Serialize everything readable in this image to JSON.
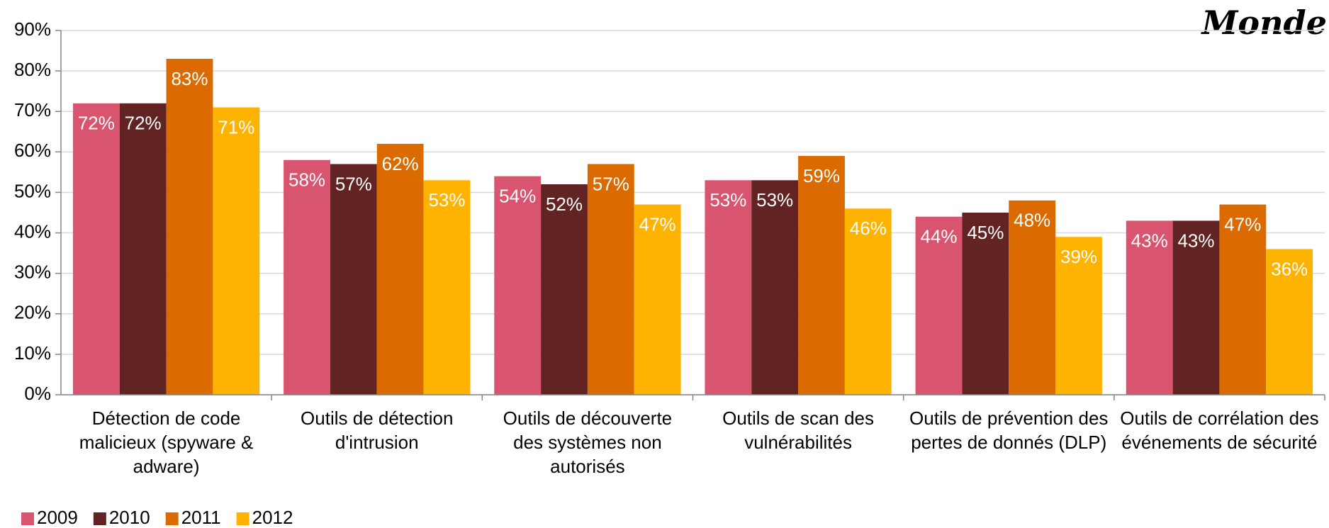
{
  "chart_data": {
    "type": "bar",
    "title": "Monde",
    "categories": [
      "Détection de code malicieux (spyware & adware)",
      "Outils de détection d'intrusion",
      "Outils de découverte des systèmes non autorisés",
      "Outils de scan des vulnérabilités",
      "Outils de prévention des pertes de donnés (DLP)",
      "Outils de corrélation des événements de sécurité"
    ],
    "series": [
      {
        "name": "2009",
        "color": "#d9546e",
        "values": [
          72,
          58,
          54,
          53,
          44,
          43
        ],
        "value_labels": [
          "72%",
          "58%",
          "54%",
          "53%",
          "44%",
          "43%"
        ]
      },
      {
        "name": "2010",
        "color": "#622423",
        "values": [
          72,
          57,
          52,
          53,
          45,
          43
        ],
        "value_labels": [
          "72%",
          "57%",
          "52%",
          "53%",
          "45%",
          "43%"
        ]
      },
      {
        "name": "2011",
        "color": "#db6a00",
        "values": [
          83,
          62,
          57,
          59,
          48,
          47
        ],
        "value_labels": [
          "83%",
          "62%",
          "57%",
          "59%",
          "48%",
          "47%"
        ]
      },
      {
        "name": "2012",
        "color": "#fdb300",
        "values": [
          71,
          53,
          47,
          46,
          39,
          36
        ],
        "value_labels": [
          "71%",
          "53%",
          "47%",
          "46%",
          "39%",
          "36%"
        ]
      }
    ],
    "ylim": [
      0,
      90
    ],
    "yticks": [
      {
        "value": 0,
        "label": "0%"
      },
      {
        "value": 10,
        "label": "10%"
      },
      {
        "value": 20,
        "label": "20%"
      },
      {
        "value": 30,
        "label": "30%"
      },
      {
        "value": 40,
        "label": "40%"
      },
      {
        "value": 50,
        "label": "50%"
      },
      {
        "value": 60,
        "label": "60%"
      },
      {
        "value": 70,
        "label": "70%"
      },
      {
        "value": 80,
        "label": "80%"
      },
      {
        "value": 90,
        "label": "90%"
      }
    ],
    "grid": true,
    "legend": "bottom-left"
  }
}
